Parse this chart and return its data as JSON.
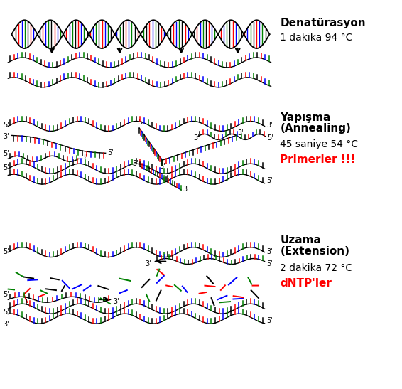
{
  "background_color": "#ffffff",
  "label1_line1": "Denatürasyon",
  "label1_line2": "1 dakika 94 °C",
  "label2_line1": "Yapışma",
  "label2_line2": "(Annealing)",
  "label2_line3": "45 saniye 54 °C",
  "label2_line4": "Primerler !!!",
  "label3_line1": "Uzama",
  "label3_line2": "(Extension)",
  "label3_line3": "2 dakika 72 °C",
  "label3_line4": "dNTP'ler",
  "colors": [
    "#000000",
    "#ff0000",
    "#0000ff",
    "#008000"
  ],
  "red": "#ff0000",
  "black": "#000000"
}
